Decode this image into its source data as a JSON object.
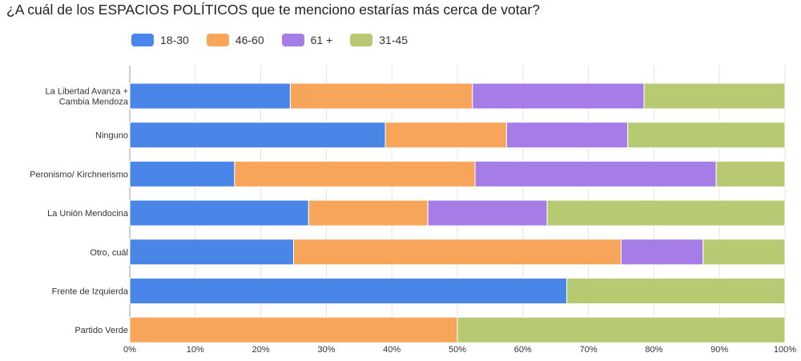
{
  "chart_data": {
    "type": "bar",
    "orientation": "horizontal",
    "stacked": "percent",
    "title": "¿A cuál de los ESPACIOS POLÍTICOS que te menciono estarías más cerca de votar?",
    "legend_position": "top-left",
    "categories": [
      [
        "La Libertad Avanza +",
        "Cambia Mendoza"
      ],
      [
        "Ninguno"
      ],
      [
        "Peronismo/ Kirchnerismo"
      ],
      [
        "La Unión Mendocina"
      ],
      [
        "Otro, cuál"
      ],
      [
        "Frente de Izquierda"
      ],
      [
        "Partido Verde"
      ]
    ],
    "series": [
      {
        "name": "18-30",
        "color": "#4a86e8",
        "values": [
          24.5,
          39.0,
          16.0,
          27.3,
          25.0,
          66.7,
          0
        ]
      },
      {
        "name": "46-60",
        "color": "#f6a55a",
        "values": [
          27.8,
          18.5,
          36.7,
          18.2,
          50.0,
          0,
          50.0
        ]
      },
      {
        "name": "61 +",
        "color": "#a67de6",
        "values": [
          26.2,
          18.5,
          36.8,
          18.2,
          12.5,
          0,
          0
        ]
      },
      {
        "name": "31-45",
        "color": "#b7c971",
        "values": [
          21.5,
          24.0,
          10.5,
          36.3,
          12.5,
          33.3,
          50.0
        ]
      }
    ],
    "xlim": [
      0,
      100
    ],
    "x_ticks": [
      "0%",
      "10%",
      "20%",
      "30%",
      "40%",
      "50%",
      "60%",
      "70%",
      "80%",
      "90%",
      "100%"
    ],
    "grid": true
  }
}
